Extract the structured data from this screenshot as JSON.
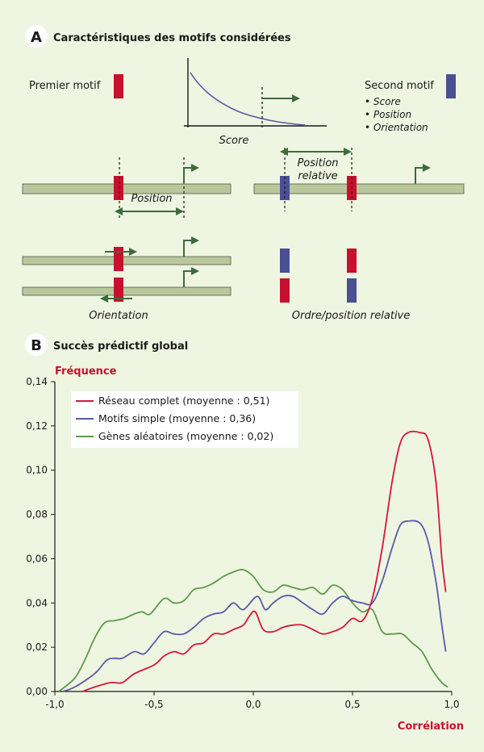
{
  "panel_a": {
    "letter": "A",
    "title": "Caractéristiques des motifs considérées",
    "first_motif": "Premier motif",
    "second_motif": "Second motif",
    "bullets": [
      "• Score",
      "• Position",
      "• Orientation"
    ],
    "score_label": "Score",
    "position_label": "Position",
    "position_relative_1": "Position",
    "position_relative_2": "relative",
    "orientation_label": "Orientation",
    "ordre_label": "Ordre/position relative"
  },
  "panel_b": {
    "letter": "B",
    "title": "Succès prédictif global"
  },
  "colors": {
    "background": "#eef5e1",
    "red_motif": "#c8102e",
    "blue_motif": "#4b4f94",
    "dna_fill": "#b8c89a",
    "arrow_green": "#3c6b3c",
    "series_red": "#d4173a",
    "series_blue": "#5a5aa8",
    "series_green": "#5e9a4e"
  },
  "chart_data": {
    "type": "line",
    "ylabel": "Fréquence",
    "xlabel": "Corrélation",
    "xlim": [
      -1.0,
      1.0
    ],
    "ylim": [
      0.0,
      0.14
    ],
    "x_ticks": [
      "-1,0",
      "-0,5",
      "0,0",
      "0,5",
      "1,0"
    ],
    "x_tick_values": [
      -1.0,
      -0.5,
      0.0,
      0.5,
      1.0
    ],
    "y_ticks": [
      "0,00",
      "0,02",
      "0,04",
      "0,06",
      "0,08",
      "0,10",
      "0,12",
      "0,14"
    ],
    "y_tick_values": [
      0.0,
      0.02,
      0.04,
      0.06,
      0.08,
      0.1,
      0.12,
      0.14
    ],
    "legend_position": "top-left",
    "series": [
      {
        "name": "Réseau complet (moyenne : 0,51)",
        "color": "#d4173a",
        "points": [
          [
            -0.86,
            0.0
          ],
          [
            -0.8,
            0.002
          ],
          [
            -0.72,
            0.004
          ],
          [
            -0.66,
            0.004
          ],
          [
            -0.6,
            0.008
          ],
          [
            -0.5,
            0.012
          ],
          [
            -0.45,
            0.016
          ],
          [
            -0.4,
            0.018
          ],
          [
            -0.35,
            0.017
          ],
          [
            -0.3,
            0.021
          ],
          [
            -0.25,
            0.022
          ],
          [
            -0.2,
            0.026
          ],
          [
            -0.15,
            0.026
          ],
          [
            -0.1,
            0.028
          ],
          [
            -0.05,
            0.03
          ],
          [
            -0.02,
            0.034
          ],
          [
            0.01,
            0.036
          ],
          [
            0.05,
            0.028
          ],
          [
            0.1,
            0.027
          ],
          [
            0.15,
            0.029
          ],
          [
            0.2,
            0.03
          ],
          [
            0.25,
            0.03
          ],
          [
            0.3,
            0.028
          ],
          [
            0.35,
            0.026
          ],
          [
            0.4,
            0.027
          ],
          [
            0.45,
            0.029
          ],
          [
            0.5,
            0.033
          ],
          [
            0.55,
            0.032
          ],
          [
            0.6,
            0.042
          ],
          [
            0.65,
            0.065
          ],
          [
            0.7,
            0.095
          ],
          [
            0.74,
            0.112
          ],
          [
            0.78,
            0.117
          ],
          [
            0.84,
            0.117
          ],
          [
            0.88,
            0.114
          ],
          [
            0.92,
            0.095
          ],
          [
            0.95,
            0.06
          ],
          [
            0.97,
            0.045
          ]
        ]
      },
      {
        "name": "Motifs simple (moyenne : 0,36)",
        "color": "#5a5aa8",
        "points": [
          [
            -0.96,
            0.0
          ],
          [
            -0.9,
            0.002
          ],
          [
            -0.8,
            0.008
          ],
          [
            -0.74,
            0.014
          ],
          [
            -0.7,
            0.015
          ],
          [
            -0.66,
            0.015
          ],
          [
            -0.6,
            0.018
          ],
          [
            -0.55,
            0.017
          ],
          [
            -0.5,
            0.022
          ],
          [
            -0.45,
            0.027
          ],
          [
            -0.4,
            0.026
          ],
          [
            -0.35,
            0.026
          ],
          [
            -0.3,
            0.029
          ],
          [
            -0.25,
            0.033
          ],
          [
            -0.2,
            0.035
          ],
          [
            -0.15,
            0.036
          ],
          [
            -0.1,
            0.04
          ],
          [
            -0.05,
            0.037
          ],
          [
            0.02,
            0.043
          ],
          [
            0.06,
            0.037
          ],
          [
            0.1,
            0.04
          ],
          [
            0.15,
            0.043
          ],
          [
            0.2,
            0.043
          ],
          [
            0.25,
            0.04
          ],
          [
            0.3,
            0.037
          ],
          [
            0.35,
            0.035
          ],
          [
            0.4,
            0.04
          ],
          [
            0.45,
            0.043
          ],
          [
            0.5,
            0.041
          ],
          [
            0.55,
            0.04
          ],
          [
            0.6,
            0.04
          ],
          [
            0.65,
            0.05
          ],
          [
            0.7,
            0.065
          ],
          [
            0.74,
            0.075
          ],
          [
            0.78,
            0.077
          ],
          [
            0.84,
            0.076
          ],
          [
            0.88,
            0.068
          ],
          [
            0.92,
            0.05
          ],
          [
            0.95,
            0.03
          ],
          [
            0.97,
            0.018
          ]
        ]
      },
      {
        "name": "Gènes aléatoires (moyenne : 0,02)",
        "color": "#5e9a4e",
        "points": [
          [
            -0.98,
            0.0
          ],
          [
            -0.9,
            0.006
          ],
          [
            -0.85,
            0.014
          ],
          [
            -0.8,
            0.024
          ],
          [
            -0.75,
            0.031
          ],
          [
            -0.7,
            0.032
          ],
          [
            -0.65,
            0.033
          ],
          [
            -0.6,
            0.035
          ],
          [
            -0.56,
            0.036
          ],
          [
            -0.52,
            0.035
          ],
          [
            -0.45,
            0.042
          ],
          [
            -0.4,
            0.04
          ],
          [
            -0.35,
            0.041
          ],
          [
            -0.3,
            0.046
          ],
          [
            -0.25,
            0.047
          ],
          [
            -0.2,
            0.049
          ],
          [
            -0.15,
            0.052
          ],
          [
            -0.1,
            0.054
          ],
          [
            -0.05,
            0.055
          ],
          [
            0.0,
            0.052
          ],
          [
            0.05,
            0.046
          ],
          [
            0.1,
            0.045
          ],
          [
            0.15,
            0.048
          ],
          [
            0.2,
            0.047
          ],
          [
            0.25,
            0.046
          ],
          [
            0.3,
            0.047
          ],
          [
            0.35,
            0.044
          ],
          [
            0.4,
            0.048
          ],
          [
            0.45,
            0.046
          ],
          [
            0.5,
            0.04
          ],
          [
            0.55,
            0.036
          ],
          [
            0.6,
            0.037
          ],
          [
            0.65,
            0.027
          ],
          [
            0.7,
            0.026
          ],
          [
            0.75,
            0.026
          ],
          [
            0.8,
            0.022
          ],
          [
            0.85,
            0.018
          ],
          [
            0.9,
            0.01
          ],
          [
            0.95,
            0.004
          ],
          [
            0.98,
            0.002
          ]
        ]
      }
    ]
  }
}
